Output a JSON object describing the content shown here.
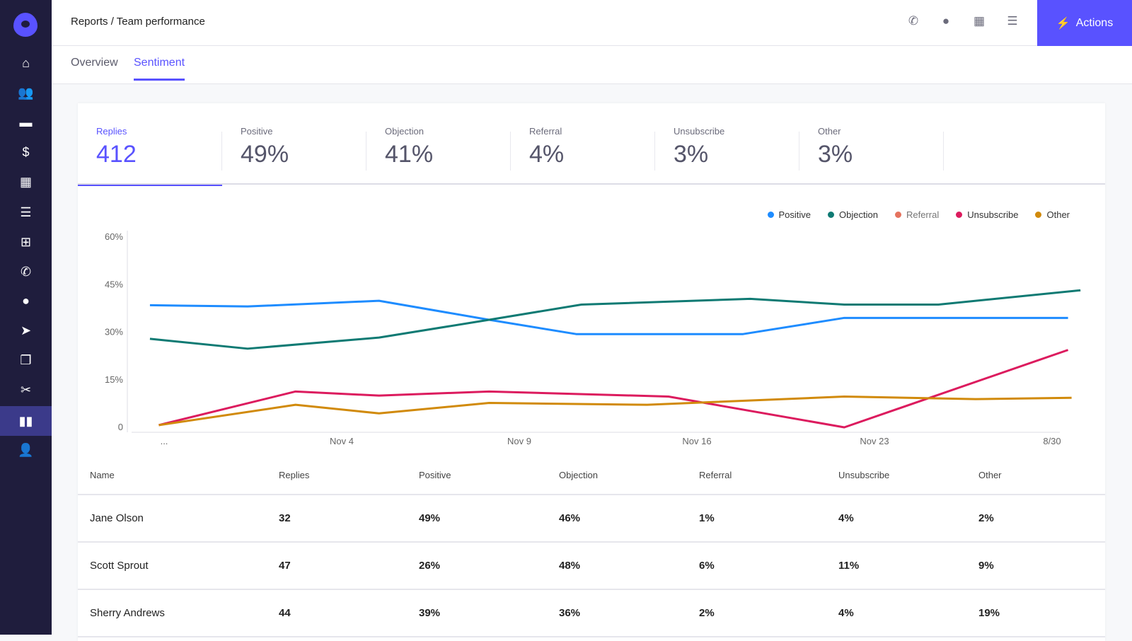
{
  "header": {
    "breadcrumb": "Reports / Team performance",
    "actions_label": "Actions",
    "icons": [
      "phone-icon",
      "chat-icon",
      "calendar-icon",
      "tasks-icon"
    ]
  },
  "sidebar": {
    "items": [
      "home-icon",
      "people-icon",
      "briefcase-icon",
      "dollar-icon",
      "calendar-icon",
      "tasks-icon",
      "import-icon",
      "phone-icon",
      "chat-icon",
      "send-icon",
      "copy-icon",
      "scissors-icon",
      "reports-icon",
      "user-icon"
    ],
    "active": "reports-icon"
  },
  "tabs": [
    {
      "label": "Overview"
    },
    {
      "label": "Sentiment",
      "active": true
    }
  ],
  "stats": [
    {
      "label": "Replies",
      "value": "412"
    },
    {
      "label": "Positive",
      "value": "49%"
    },
    {
      "label": "Objection",
      "value": "41%"
    },
    {
      "label": "Referral",
      "value": "4%"
    },
    {
      "label": "Unsubscribe",
      "value": "3%"
    },
    {
      "label": "Other",
      "value": "3%"
    }
  ],
  "chart_data": {
    "type": "line",
    "x_ticks": [
      "...",
      "Nov 4",
      "Nov 9",
      "Nov 16",
      "Nov 23",
      "8/30"
    ],
    "y_ticks": [
      "60%",
      "45%",
      "30%",
      "15%",
      "0"
    ],
    "ylim": [
      0,
      60
    ],
    "legend_position": "top-right",
    "series": [
      {
        "name": "Positive",
        "color": "#1e8cff",
        "points": [
          [
            -0.08,
            38.5
          ],
          [
            0.47,
            38.1
          ],
          [
            1.21,
            39.9
          ],
          [
            1.83,
            33.9
          ],
          [
            2.32,
            29.4
          ],
          [
            3.26,
            29.4
          ],
          [
            3.83,
            34.5
          ],
          [
            5.09,
            34.5
          ]
        ]
      },
      {
        "name": "Objection",
        "color": "#0f7a73",
        "points": [
          [
            -0.08,
            27.9
          ],
          [
            0.47,
            24.8
          ],
          [
            1.21,
            28.3
          ],
          [
            1.83,
            33.9
          ],
          [
            2.35,
            38.7
          ],
          [
            3.3,
            40.5
          ],
          [
            3.83,
            38.7
          ],
          [
            4.36,
            38.7
          ],
          [
            5.16,
            43.2
          ]
        ]
      },
      {
        "name": "Referral",
        "color": "#e5735f",
        "points": []
      },
      {
        "name": "Unsubscribe",
        "color": "#dc1b5e",
        "points": [
          [
            -0.03,
            0.7
          ],
          [
            0.74,
            11.3
          ],
          [
            1.21,
            10.0
          ],
          [
            1.83,
            11.3
          ],
          [
            2.84,
            9.7
          ],
          [
            3.83,
            0
          ],
          [
            5.09,
            24.4
          ]
        ]
      },
      {
        "name": "Other",
        "color": "#d18a0b",
        "points": [
          [
            -0.03,
            0.7
          ],
          [
            0.74,
            7.1
          ],
          [
            1.21,
            4.4
          ],
          [
            1.83,
            7.7
          ],
          [
            2.72,
            7.1
          ],
          [
            3.83,
            9.7
          ],
          [
            4.57,
            8.9
          ],
          [
            5.11,
            9.3
          ]
        ]
      }
    ]
  },
  "table": {
    "columns": [
      "Name",
      "Replies",
      "Positive",
      "Objection",
      "Referral",
      "Unsubscribe",
      "Other"
    ],
    "rows": [
      [
        "Jane Olson",
        "32",
        "49%",
        "46%",
        "1%",
        "4%",
        "2%"
      ],
      [
        "Scott Sprout",
        "47",
        "26%",
        "48%",
        "6%",
        "11%",
        "9%"
      ],
      [
        "Sherry Andrews",
        "44",
        "39%",
        "36%",
        "2%",
        "4%",
        "19%"
      ]
    ]
  }
}
